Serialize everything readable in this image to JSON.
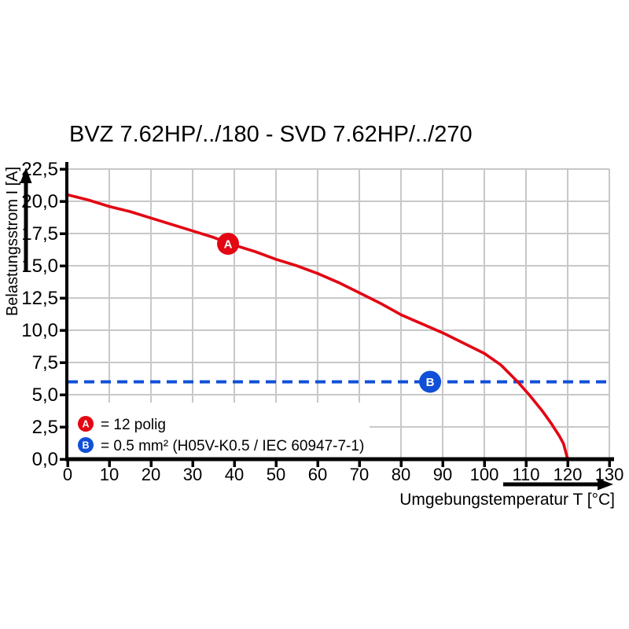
{
  "title": "BVZ 7.62HP/../180 - SVD 7.62HP/../270",
  "colors": {
    "red": "#e30613",
    "blue": "#1050d8",
    "grid": "#c8c8c8",
    "axis": "#000000",
    "background": "#ffffff"
  },
  "chart_data": {
    "type": "line",
    "title": "BVZ 7.62HP/../180 - SVD 7.62HP/../270",
    "xlabel": "Umgebungstemperatur T [°C]",
    "ylabel": "Belastungsstrom I [A]",
    "xlim": [
      0,
      130
    ],
    "ylim": [
      0,
      22.5
    ],
    "grid": true,
    "x_tick_values": [
      0,
      10,
      20,
      30,
      40,
      50,
      60,
      70,
      80,
      90,
      100,
      110,
      120,
      130
    ],
    "x_tick_labels": [
      "0",
      "10",
      "20",
      "30",
      "40",
      "50",
      "60",
      "70",
      "80",
      "90",
      "100",
      "110",
      "120",
      "130"
    ],
    "y_tick_values": [
      0,
      2.5,
      5,
      7.5,
      10,
      12.5,
      15,
      17.5,
      20,
      22.5
    ],
    "y_tick_labels": [
      "0,0",
      "2,5",
      "5,0",
      "7,5",
      "10,0",
      "12,5",
      "15,0",
      "17,5",
      "20,0",
      "22,5"
    ],
    "series": [
      {
        "name": "A",
        "description": "12 polig",
        "style": "solid",
        "color_key": "red",
        "points": [
          [
            0,
            20.5
          ],
          [
            5,
            20.1
          ],
          [
            10,
            19.6
          ],
          [
            15,
            19.2
          ],
          [
            20,
            18.7
          ],
          [
            25,
            18.2
          ],
          [
            30,
            17.7
          ],
          [
            35,
            17.2
          ],
          [
            40,
            16.6
          ],
          [
            45,
            16.1
          ],
          [
            50,
            15.5
          ],
          [
            55,
            15.0
          ],
          [
            60,
            14.4
          ],
          [
            65,
            13.7
          ],
          [
            70,
            12.9
          ],
          [
            75,
            12.1
          ],
          [
            80,
            11.2
          ],
          [
            85,
            10.5
          ],
          [
            90,
            9.8
          ],
          [
            95,
            9.0
          ],
          [
            100,
            8.2
          ],
          [
            104,
            7.3
          ],
          [
            108,
            6.0
          ],
          [
            111,
            4.9
          ],
          [
            114,
            3.7
          ],
          [
            116,
            2.8
          ],
          [
            118,
            1.8
          ],
          [
            119,
            1.2
          ],
          [
            120,
            0.0
          ]
        ]
      },
      {
        "name": "B",
        "description": "0.5 mm² (H05V-K0.5 / IEC 60947-7-1)",
        "style": "dashed",
        "color_key": "blue",
        "constant_y": 6.0
      }
    ],
    "point_markers": [
      {
        "label": "A",
        "x": 38.5,
        "y": 16.7,
        "color_key": "red"
      },
      {
        "label": "B",
        "x": 87,
        "y": 6.0,
        "color_key": "blue"
      }
    ],
    "legend": {
      "position": "bottom-left",
      "items": [
        {
          "symbol": "A",
          "color_key": "red",
          "text": "= 12 polig"
        },
        {
          "symbol": "B",
          "color_key": "blue",
          "text": "= 0.5 mm² (H05V-K0.5 / IEC 60947-7-1)"
        }
      ]
    }
  }
}
